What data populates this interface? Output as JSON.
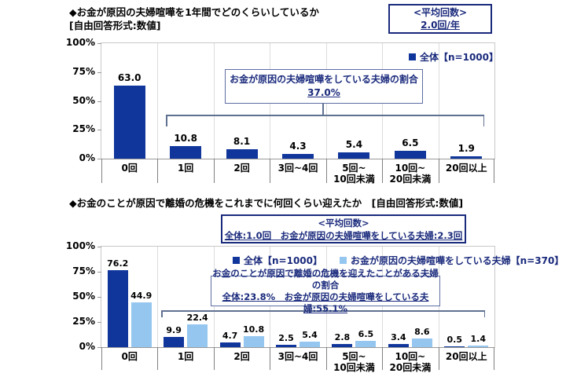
{
  "colors": {
    "bar_dark": "#10369C",
    "bar_light": "#94C6F0",
    "navy_text": "#1A2A7C",
    "annotation_border": "#5E6DA3",
    "bracket": "#5F7191",
    "plot_border": "#C8C8C8",
    "separator": "#DCDCDC",
    "axis": "#999999",
    "cat_tick": "#808080"
  },
  "chart_data": [
    {
      "type": "bar",
      "title": "◆お金が原因の夫婦喧嘩を1年間でどのくらいしているか",
      "subtitle": "[自由回答形式:数値]",
      "avg_box": [
        "<平均回数>",
        "2.0回/年"
      ],
      "legend": [
        {
          "name": "全体【n=1000】",
          "swatch": "bar_dark"
        }
      ],
      "annotation": [
        "お金が原因の夫婦喧嘩をしている夫婦の割合",
        "37.0%"
      ],
      "categories": [
        "0回",
        "1回",
        "2回",
        "3回~4回",
        "5回~\n10回未満",
        "10回~\n20回未満",
        "20回以上"
      ],
      "series": [
        {
          "name": "全体【n=1000】",
          "values": [
            63.0,
            10.8,
            8.1,
            4.3,
            5.4,
            6.5,
            1.9
          ]
        }
      ],
      "ylim": [
        0,
        100
      ],
      "yticks": [
        0,
        25,
        50,
        75,
        100
      ],
      "ytick_suffix": "%",
      "grid": "vertical-separators-only",
      "legend_position": "inside-top-right"
    },
    {
      "type": "bar",
      "title": "◆お金のことが原因で離婚の危機をこれまでに何回くらい迎えたか　[自由回答形式:数値]",
      "avg_box": [
        "<平均回数>",
        "全体:1.0回　お金が原因の夫婦喧嘩をしている夫婦:2.3回"
      ],
      "legend": [
        {
          "name": "全体【n=1000】",
          "swatch": "bar_dark"
        },
        {
          "name": "お金が原因の夫婦喧嘩をしている夫婦【n=370】",
          "swatch": "bar_light"
        }
      ],
      "annotation": [
        "お金のことが原因で離婚の危機を迎えたことがある夫婦の割合",
        "全体:23.8%　お金が原因の夫婦喧嘩をしている夫婦:55.1%"
      ],
      "categories": [
        "0回",
        "1回",
        "2回",
        "3回~4回",
        "5回~\n10回未満",
        "10回~\n20回未満",
        "20回以上"
      ],
      "series": [
        {
          "name": "全体【n=1000】",
          "values": [
            76.2,
            9.9,
            4.7,
            2.5,
            2.8,
            3.4,
            0.5
          ]
        },
        {
          "name": "お金が原因の夫婦喧嘩をしている夫婦【n=370】",
          "values": [
            44.9,
            22.4,
            10.8,
            5.4,
            6.5,
            8.6,
            1.4
          ]
        }
      ],
      "ylim": [
        0,
        100
      ],
      "yticks": [
        0,
        25,
        50,
        75,
        100
      ],
      "ytick_suffix": "%",
      "grid": "vertical-separators-only",
      "legend_position": "inside-top-center"
    }
  ]
}
